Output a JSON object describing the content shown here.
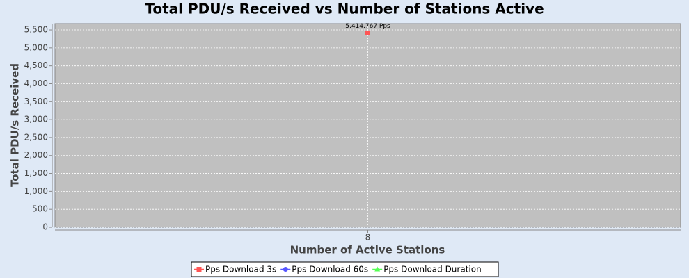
{
  "chart_data": {
    "type": "line",
    "title": "Total PDU/s Received vs Number of Stations Active",
    "x_label": "Number of Active Stations",
    "y_label": "Total PDU/s Received",
    "categories": [
      "8"
    ],
    "series": [
      {
        "name": "Pps Download 3s",
        "color": "#ff5555",
        "marker": "square",
        "values": [
          5414.767
        ],
        "value_labels": [
          "5,414.767 Pps"
        ]
      },
      {
        "name": "Pps Download 60s",
        "color": "#5555ff",
        "marker": "circle",
        "values": [
          null
        ]
      },
      {
        "name": "Pps Download Duration",
        "color": "#55ff55",
        "marker": "triangle",
        "values": [
          null
        ]
      }
    ],
    "ylim": [
      0,
      5675
    ],
    "yticks": [
      0,
      500,
      {
        "value": 1000,
        "label": "1,000"
      },
      {
        "value": 1500,
        "label": "1,500"
      },
      {
        "value": 2000,
        "label": "2,000"
      },
      {
        "value": 2500,
        "label": "2,500"
      },
      {
        "value": 3000,
        "label": "3,000"
      },
      {
        "value": 3500,
        "label": "3,500"
      },
      {
        "value": 4000,
        "label": "4,000"
      },
      {
        "value": 4500,
        "label": "4,500"
      },
      {
        "value": 5000,
        "label": "5,000"
      },
      {
        "value": 5500,
        "label": "5,500"
      }
    ],
    "grid": true,
    "legend": "bottom"
  }
}
